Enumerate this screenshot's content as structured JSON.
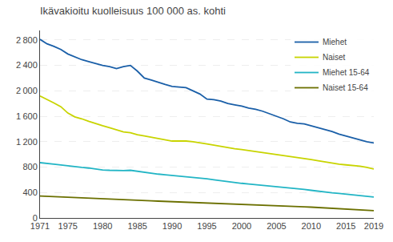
{
  "chart_data": {
    "type": "line",
    "title": "Ikävakioitu kuolleisuus 100 000 as. kohti",
    "x": [
      1971,
      1972,
      1973,
      1974,
      1975,
      1976,
      1977,
      1978,
      1979,
      1980,
      1981,
      1982,
      1983,
      1984,
      1985,
      1986,
      1987,
      1988,
      1989,
      1990,
      1991,
      1992,
      1993,
      1994,
      1995,
      1996,
      1997,
      1998,
      1999,
      2000,
      2001,
      2002,
      2003,
      2004,
      2005,
      2006,
      2007,
      2008,
      2009,
      2010,
      2011,
      2012,
      2013,
      2014,
      2015,
      2016,
      2017,
      2018,
      2019
    ],
    "series": [
      {
        "name": "Miehet",
        "color": "#1a5fa8",
        "values": [
          2810,
          2740,
          2700,
          2650,
          2580,
          2530,
          2490,
          2460,
          2430,
          2400,
          2380,
          2350,
          2380,
          2400,
          2310,
          2200,
          2170,
          2130,
          2100,
          2070,
          2060,
          2050,
          2000,
          1950,
          1870,
          1860,
          1840,
          1800,
          1780,
          1760,
          1730,
          1710,
          1680,
          1640,
          1600,
          1560,
          1510,
          1490,
          1480,
          1450,
          1420,
          1390,
          1360,
          1320,
          1290,
          1260,
          1230,
          1200,
          1180
        ]
      },
      {
        "name": "Naiset",
        "color": "#c8d400",
        "values": [
          1920,
          1870,
          1810,
          1750,
          1650,
          1590,
          1560,
          1520,
          1480,
          1450,
          1420,
          1390,
          1355,
          1340,
          1310,
          1290,
          1270,
          1245,
          1225,
          1210,
          1210,
          1210,
          1200,
          1185,
          1165,
          1145,
          1125,
          1105,
          1090,
          1075,
          1060,
          1040,
          1025,
          1010,
          1000,
          980,
          965,
          950,
          935,
          920,
          900,
          880,
          860,
          845,
          835,
          825,
          815,
          795,
          770
        ]
      },
      {
        "name": "Miehet 15-64",
        "color": "#22b5c5",
        "values": [
          870,
          855,
          845,
          835,
          820,
          805,
          795,
          785,
          770,
          755,
          750,
          745,
          745,
          750,
          735,
          715,
          700,
          690,
          680,
          670,
          660,
          650,
          640,
          630,
          615,
          600,
          585,
          570,
          555,
          545,
          535,
          525,
          515,
          505,
          495,
          485,
          470,
          460,
          450,
          435,
          420,
          410,
          395,
          385,
          375,
          365,
          355,
          345,
          330
        ]
      },
      {
        "name": "Naiset 15-64",
        "color": "#6b7000",
        "values": [
          345,
          340,
          335,
          328,
          322,
          316,
          310,
          305,
          300,
          295,
          290,
          285,
          283,
          280,
          277,
          273,
          269,
          265,
          261,
          257,
          254,
          251,
          248,
          244,
          240,
          236,
          232,
          228,
          224,
          220,
          216,
          213,
          209,
          205,
          200,
          195,
          188,
          182,
          176,
          170,
          163,
          157,
          151,
          145,
          140,
          135,
          130,
          123,
          115
        ]
      }
    ],
    "xlim": [
      1971,
      2019
    ],
    "xticks": [
      1971,
      1975,
      1980,
      1985,
      1990,
      1995,
      2000,
      2005,
      2010,
      2015,
      2019
    ],
    "ylim": [
      0,
      2950
    ],
    "yticks": [
      0,
      400,
      800,
      {
        "value": 1200,
        "label": "1 200"
      },
      {
        "value": 1600,
        "label": "1 600"
      },
      {
        "value": 2000,
        "label": "2 000"
      },
      {
        "value": 2400,
        "label": "2 400"
      },
      {
        "value": 2800,
        "label": "2 800"
      }
    ],
    "grid": "y",
    "legend": "upper right"
  }
}
